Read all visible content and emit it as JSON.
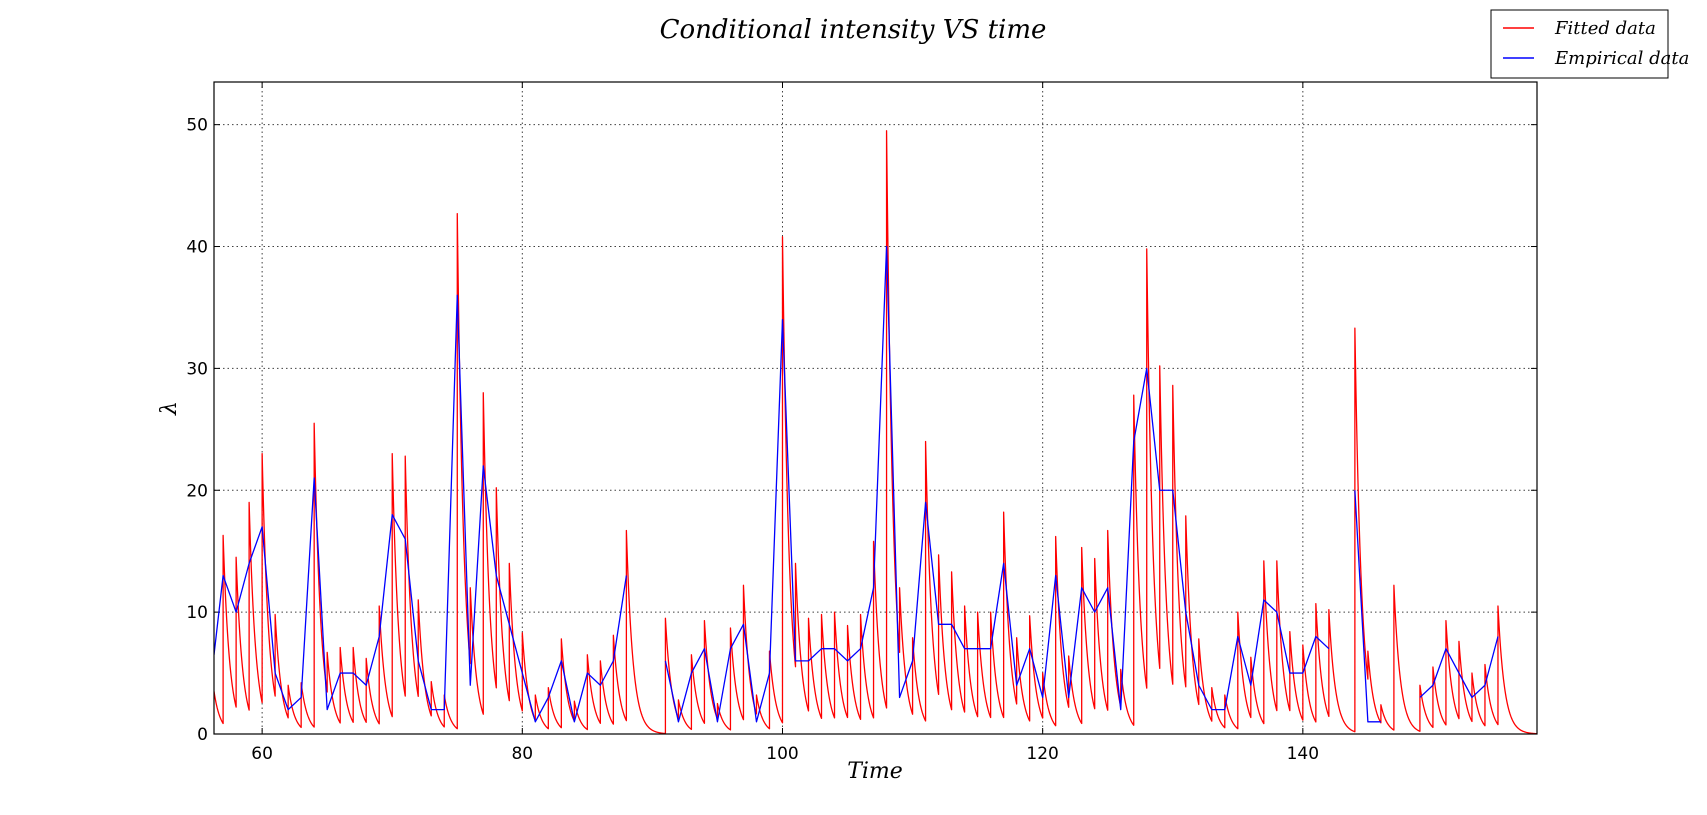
{
  "chart_data": {
    "type": "line",
    "title": "Conditional intensity VS time",
    "xlabel": "Time",
    "ylabel": "λ",
    "xlim": [
      56.3,
      158
    ],
    "ylim": [
      0,
      53.5
    ],
    "x_ticks": [
      60,
      80,
      100,
      120,
      140
    ],
    "y_ticks": [
      0,
      10,
      20,
      30,
      40,
      50
    ],
    "grid": true,
    "legend_position": "top-right",
    "series": [
      {
        "name": "Fitted data",
        "color": "#ff0000",
        "decay_per_time_unit": 2.0,
        "spikes": [
          [
            56.3,
            3.5
          ],
          [
            57.0,
            16.3
          ],
          [
            58.0,
            14.5
          ],
          [
            59.0,
            19.0
          ],
          [
            60.0,
            23.0
          ],
          [
            61.0,
            9.8
          ],
          [
            62.0,
            4.0
          ],
          [
            63.0,
            4.2
          ],
          [
            64.0,
            25.5
          ],
          [
            65.0,
            6.7
          ],
          [
            66.0,
            7.1
          ],
          [
            67.0,
            7.1
          ],
          [
            68.0,
            6.2
          ],
          [
            69.0,
            10.5
          ],
          [
            70.0,
            23.0
          ],
          [
            71.0,
            22.8
          ],
          [
            72.0,
            11.0
          ],
          [
            73.0,
            4.3
          ],
          [
            74.0,
            3.2
          ],
          [
            75.0,
            42.7
          ],
          [
            76.0,
            12.0
          ],
          [
            77.0,
            28.0
          ],
          [
            78.0,
            20.2
          ],
          [
            79.0,
            14.0
          ],
          [
            80.0,
            8.3
          ],
          [
            81.0,
            3.2
          ],
          [
            82.0,
            3.8
          ],
          [
            83.0,
            7.8
          ],
          [
            84.0,
            2.7
          ],
          [
            85.0,
            6.5
          ],
          [
            86.0,
            6.0
          ],
          [
            87.0,
            8.1
          ],
          [
            88.0,
            16.7
          ],
          [
            91.0,
            9.5
          ],
          [
            92.0,
            2.8
          ],
          [
            93.0,
            6.5
          ],
          [
            94.0,
            9.3
          ],
          [
            95.0,
            2.5
          ],
          [
            96.0,
            8.7
          ],
          [
            97.0,
            12.2
          ],
          [
            98.0,
            3.2
          ],
          [
            99.0,
            6.8
          ],
          [
            100.0,
            40.8
          ],
          [
            101.0,
            14.0
          ],
          [
            102.0,
            9.5
          ],
          [
            103.0,
            9.8
          ],
          [
            104.0,
            10.0
          ],
          [
            105.0,
            8.9
          ],
          [
            106.0,
            9.8
          ],
          [
            107.0,
            15.8
          ],
          [
            108.0,
            49.5
          ],
          [
            109.0,
            12.0
          ],
          [
            110.0,
            7.9
          ],
          [
            111.0,
            24.0
          ],
          [
            112.0,
            14.7
          ],
          [
            113.0,
            13.3
          ],
          [
            114.0,
            10.5
          ],
          [
            115.0,
            10.0
          ],
          [
            116.0,
            10.0
          ],
          [
            117.0,
            18.2
          ],
          [
            118.0,
            7.9
          ],
          [
            119.0,
            9.7
          ],
          [
            120.0,
            5.0
          ],
          [
            121.0,
            16.2
          ],
          [
            122.0,
            6.4
          ],
          [
            123.0,
            15.3
          ],
          [
            124.0,
            14.4
          ],
          [
            125.0,
            16.7
          ],
          [
            126.0,
            5.3
          ],
          [
            127.0,
            27.8
          ],
          [
            128.0,
            39.8
          ],
          [
            129.0,
            30.2
          ],
          [
            130.0,
            28.6
          ],
          [
            131.0,
            17.9
          ],
          [
            132.0,
            7.8
          ],
          [
            133.0,
            3.8
          ],
          [
            134.0,
            3.2
          ],
          [
            135.0,
            10.0
          ],
          [
            136.0,
            6.3
          ],
          [
            137.0,
            14.2
          ],
          [
            138.0,
            14.2
          ],
          [
            139.0,
            8.4
          ],
          [
            140.0,
            7.3
          ],
          [
            141.0,
            10.7
          ],
          [
            142.0,
            10.2
          ],
          [
            144.0,
            33.3
          ],
          [
            145.0,
            6.8
          ],
          [
            146.0,
            2.4
          ],
          [
            147.0,
            12.2
          ],
          [
            149.0,
            4.0
          ],
          [
            150.0,
            5.5
          ],
          [
            151.0,
            9.3
          ],
          [
            152.0,
            7.6
          ],
          [
            153.0,
            5.0
          ],
          [
            154.0,
            5.7
          ],
          [
            155.0,
            10.5
          ]
        ]
      },
      {
        "name": "Empirical data",
        "color": "#0000ff",
        "points": [
          [
            56.3,
            6.5
          ],
          [
            57,
            13
          ],
          [
            58,
            10
          ],
          [
            59,
            14
          ],
          [
            60,
            17
          ],
          [
            61,
            5
          ],
          [
            62,
            2
          ],
          [
            63,
            3
          ],
          [
            64,
            21
          ],
          [
            65,
            2
          ],
          [
            66,
            5
          ],
          [
            67,
            5
          ],
          [
            68,
            4
          ],
          [
            69,
            8
          ],
          [
            70,
            18
          ],
          [
            71,
            16
          ],
          [
            72,
            6
          ],
          [
            73,
            2
          ],
          [
            74,
            2
          ],
          [
            75,
            36
          ],
          [
            76,
            4
          ],
          [
            77,
            22
          ],
          [
            78,
            13
          ],
          [
            79,
            9
          ],
          [
            80,
            5
          ],
          [
            81,
            1
          ],
          [
            82,
            3
          ],
          [
            83,
            6
          ],
          [
            84,
            1
          ],
          [
            85,
            5
          ],
          [
            86,
            4
          ],
          [
            87,
            6
          ],
          [
            88,
            13
          ],
          null,
          [
            91,
            6
          ],
          [
            92,
            1
          ],
          [
            93,
            5
          ],
          [
            94,
            7
          ],
          [
            95,
            1
          ],
          [
            96,
            7
          ],
          [
            97,
            9
          ],
          [
            98,
            1
          ],
          [
            99,
            5
          ],
          [
            100,
            34
          ],
          [
            101,
            6
          ],
          [
            102,
            6
          ],
          [
            103,
            7
          ],
          [
            104,
            7
          ],
          [
            105,
            6
          ],
          [
            106,
            7
          ],
          [
            107,
            12
          ],
          [
            108,
            40
          ],
          [
            109,
            3
          ],
          [
            110,
            6
          ],
          [
            111,
            19
          ],
          [
            112,
            9
          ],
          [
            113,
            9
          ],
          [
            114,
            7
          ],
          [
            115,
            7
          ],
          [
            116,
            7
          ],
          [
            117,
            14
          ],
          [
            118,
            4
          ],
          [
            119,
            7
          ],
          [
            120,
            3
          ],
          [
            121,
            13
          ],
          [
            122,
            3
          ],
          [
            123,
            12
          ],
          [
            124,
            10
          ],
          [
            125,
            12
          ],
          [
            126,
            2
          ],
          [
            127,
            24
          ],
          [
            128,
            30
          ],
          [
            129,
            20
          ],
          [
            130,
            20
          ],
          [
            131,
            10
          ],
          [
            132,
            4
          ],
          [
            133,
            2
          ],
          [
            134,
            2
          ],
          [
            135,
            8
          ],
          [
            136,
            4
          ],
          [
            137,
            11
          ],
          [
            138,
            10
          ],
          [
            139,
            5
          ],
          [
            140,
            5
          ],
          [
            141,
            8
          ],
          [
            142,
            7
          ],
          null,
          [
            144,
            20
          ],
          [
            145,
            1
          ],
          [
            146,
            1
          ],
          null,
          [
            149,
            3
          ],
          [
            150,
            4
          ],
          [
            151,
            7
          ],
          [
            152,
            5
          ],
          [
            153,
            3
          ],
          [
            154,
            4
          ],
          [
            155,
            8
          ]
        ]
      }
    ]
  }
}
